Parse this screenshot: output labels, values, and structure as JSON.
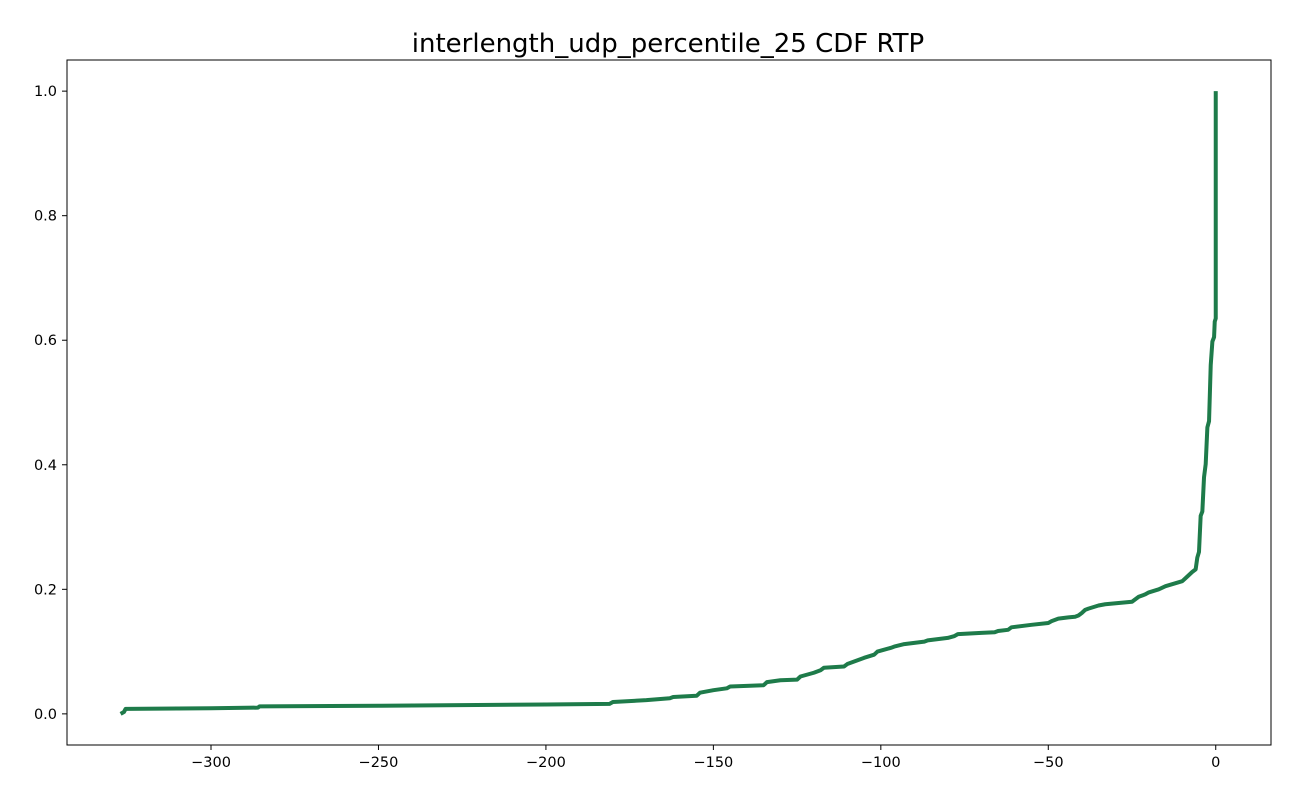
{
  "chart_data": {
    "type": "line",
    "title": "interlength_udp_percentile_25 CDF RTP",
    "xlabel": "",
    "ylabel": "",
    "xlim": [
      -343,
      16.5
    ],
    "ylim": [
      -0.05,
      1.05
    ],
    "xticks": [
      -300,
      -250,
      -200,
      -150,
      -100,
      -50,
      0
    ],
    "xtick_labels": [
      "−300",
      "−250",
      "−200",
      "−150",
      "−100",
      "−50",
      "0"
    ],
    "yticks": [
      0.0,
      0.2,
      0.4,
      0.6,
      0.8,
      1.0
    ],
    "ytick_labels": [
      "0.0",
      "0.2",
      "0.4",
      "0.6",
      "0.8",
      "1.0"
    ],
    "grid": false,
    "series": [
      {
        "color": "#1e7b4a",
        "x": [
          -327,
          -326,
          -325.5,
          -325,
          -300,
          -286,
          -285.5,
          -250,
          -200,
          -181,
          -180,
          -170,
          -163,
          -162,
          -155,
          -154,
          -150,
          -146,
          -145,
          -140,
          -135,
          -134,
          -130,
          -125,
          -124,
          -120,
          -118,
          -117,
          -111,
          -110,
          -105,
          -102,
          -101,
          -99,
          -97,
          -96,
          -93,
          -90,
          -87,
          -86,
          -80,
          -78,
          -77,
          -70,
          -66,
          -65,
          -62,
          -61,
          -55,
          -50,
          -49,
          -47,
          -44,
          -42,
          -41,
          -40,
          -39,
          -38,
          -35,
          -33,
          -25,
          -24,
          -23,
          -21,
          -20,
          -17,
          -15,
          -10,
          -9,
          -8,
          -7,
          -6,
          -5.5,
          -5,
          -4.5,
          -4,
          -3.5,
          -3,
          -2.5,
          -2,
          -1.5,
          -1,
          -0.5,
          -0.3,
          0,
          0
        ],
        "y": [
          0.0,
          0.003,
          0.008,
          0.008,
          0.009,
          0.01,
          0.012,
          0.013,
          0.015,
          0.016,
          0.019,
          0.022,
          0.025,
          0.027,
          0.029,
          0.034,
          0.038,
          0.041,
          0.044,
          0.045,
          0.046,
          0.051,
          0.054,
          0.055,
          0.06,
          0.066,
          0.07,
          0.074,
          0.076,
          0.08,
          0.09,
          0.095,
          0.1,
          0.103,
          0.106,
          0.108,
          0.112,
          0.114,
          0.116,
          0.118,
          0.122,
          0.125,
          0.128,
          0.13,
          0.131,
          0.133,
          0.135,
          0.139,
          0.143,
          0.146,
          0.149,
          0.153,
          0.155,
          0.156,
          0.158,
          0.162,
          0.167,
          0.169,
          0.174,
          0.176,
          0.18,
          0.184,
          0.188,
          0.192,
          0.195,
          0.2,
          0.205,
          0.213,
          0.218,
          0.223,
          0.228,
          0.232,
          0.251,
          0.26,
          0.318,
          0.325,
          0.38,
          0.401,
          0.46,
          0.47,
          0.56,
          0.598,
          0.605,
          0.63,
          0.635,
          1.0
        ]
      }
    ]
  }
}
